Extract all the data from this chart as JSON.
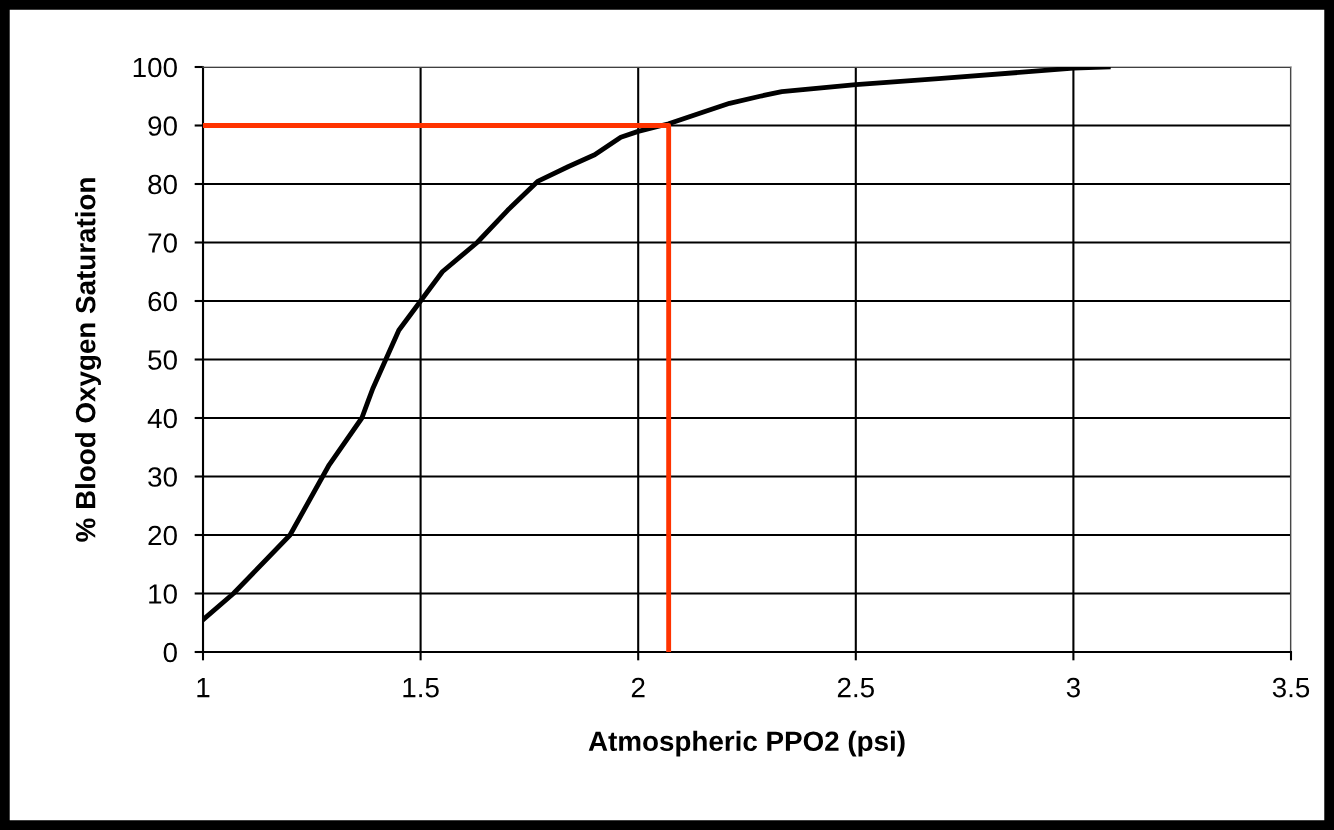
{
  "chart_data": {
    "type": "line",
    "xlabel": "Atmospheric PPO2 (psi)",
    "ylabel": "% Blood Oxygen Saturation",
    "xlim": [
      1,
      3.5
    ],
    "xticks": [
      1,
      1.5,
      2,
      2.5,
      3,
      3.5
    ],
    "ylim": [
      0,
      100
    ],
    "yticks": [
      0,
      10,
      20,
      30,
      40,
      50,
      60,
      70,
      80,
      90,
      100
    ],
    "grid": true,
    "line_style": "solid",
    "marker": "none",
    "series": [
      {
        "color": "#000000",
        "x": [
          1,
          1.07,
          1.2,
          1.29,
          1.365,
          1.38,
          1.39,
          1.45,
          1.5,
          1.55,
          1.63,
          1.7,
          1.77,
          1.84,
          1.9,
          1.96,
          2.0,
          2.07,
          2.15,
          2.21,
          2.28,
          2.33,
          2.5,
          2.69,
          3.0,
          3.08
        ],
        "values": [
          5.5,
          10,
          20,
          32,
          40,
          43,
          45,
          55,
          60,
          65,
          70,
          75.5,
          80.5,
          83,
          85,
          88,
          89,
          90.3,
          92.3,
          93.8,
          95,
          95.8,
          97,
          98,
          99.8,
          100
        ]
      },
      {
        "color": "#ff3300",
        "x": [
          1,
          2.07,
          2.07
        ],
        "values": [
          90,
          90,
          0
        ]
      }
    ]
  }
}
